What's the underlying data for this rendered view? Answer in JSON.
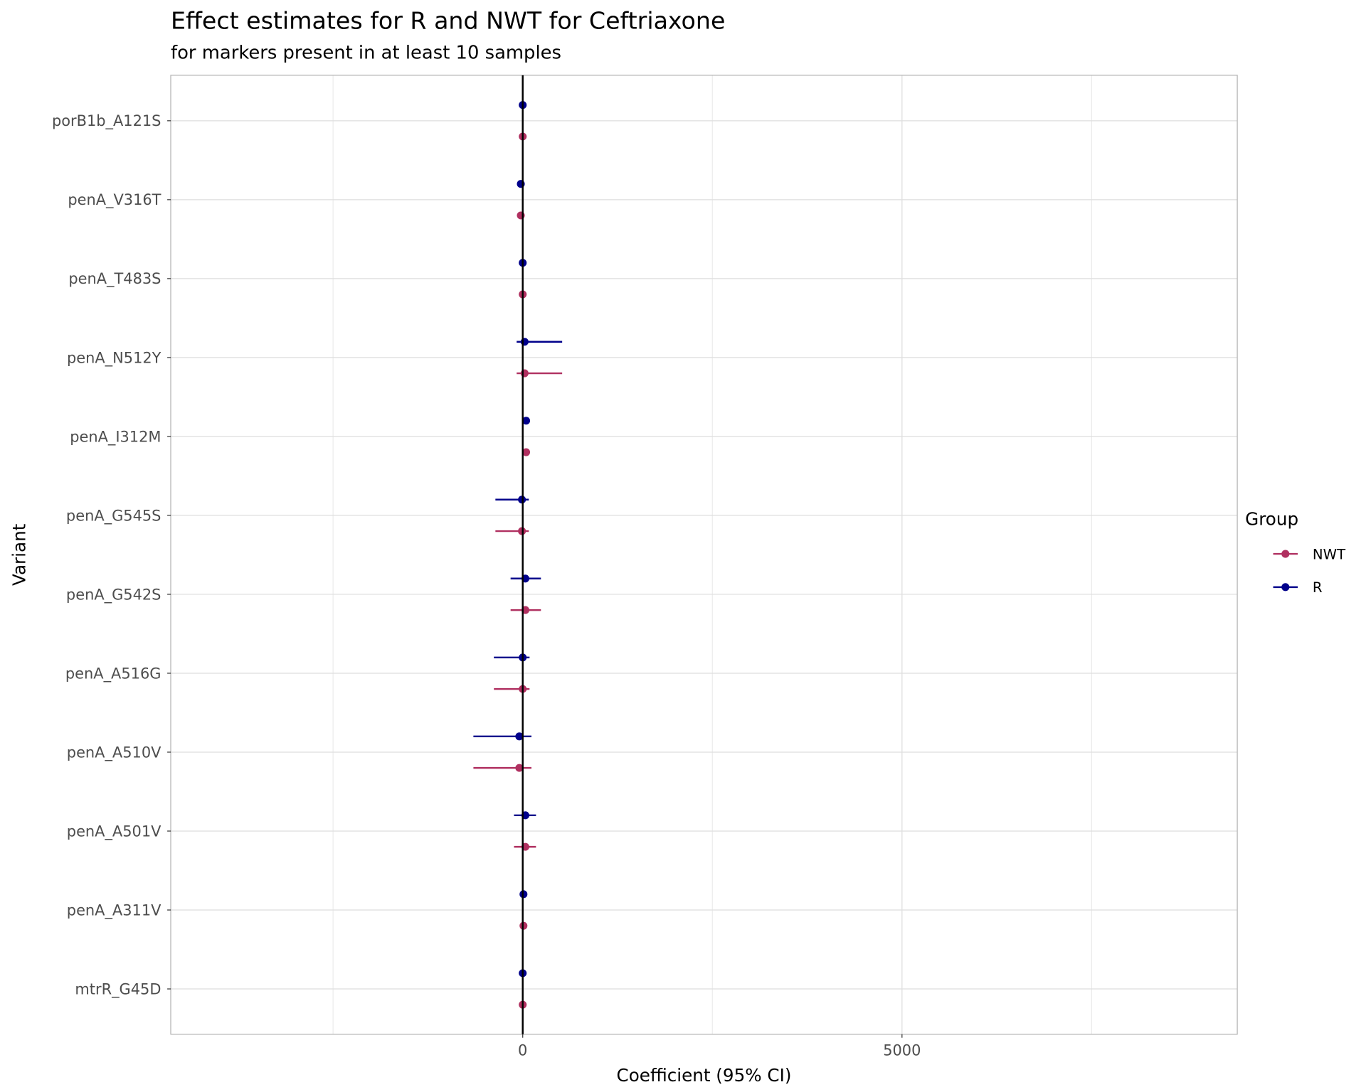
{
  "chart_data": {
    "type": "scatter",
    "subtype": "forest-plot (point + horizontal 95% CI)",
    "title": "Effect estimates for R and NWT for Ceftriaxone",
    "subtitle": "for markers present in at least 10 samples",
    "xlabel": "Coefficient (95% CI)",
    "ylabel": "Variant",
    "xlim": [
      -4640,
      9420
    ],
    "x_major_ticks": [
      0,
      5000
    ],
    "x_tick_labels": [
      "0",
      "5000"
    ],
    "x_minor_grid": [
      -2500,
      2500,
      7500
    ],
    "reference_line": 0,
    "grid": true,
    "legend": {
      "title": "Group",
      "position": "right",
      "entries": [
        "NWT",
        "R"
      ]
    },
    "colors": {
      "NWT": "#b03060",
      "R": "#00008b"
    },
    "categories": [
      "porB1b_A121S",
      "penA_V316T",
      "penA_T483S",
      "penA_N512Y",
      "penA_I312M",
      "penA_G545S",
      "penA_G542S",
      "penA_A516G",
      "penA_A510V",
      "penA_A501V",
      "penA_A311V",
      "mtrR_G45D"
    ],
    "series": [
      {
        "name": "R",
        "estimate": [
          0,
          -25,
          0,
          25,
          45,
          -10,
          35,
          0,
          -45,
          35,
          10,
          0
        ],
        "lower": [
          0,
          -25,
          0,
          -80,
          45,
          -360,
          -160,
          -380,
          -650,
          -115,
          10,
          0
        ],
        "upper": [
          0,
          -25,
          0,
          520,
          45,
          80,
          240,
          90,
          115,
          175,
          10,
          0
        ]
      },
      {
        "name": "NWT",
        "estimate": [
          0,
          -25,
          0,
          25,
          45,
          -10,
          35,
          0,
          -45,
          35,
          10,
          0
        ],
        "lower": [
          0,
          -25,
          0,
          -80,
          45,
          -360,
          -160,
          -380,
          -650,
          -115,
          10,
          0
        ],
        "upper": [
          0,
          -25,
          0,
          520,
          45,
          80,
          240,
          90,
          115,
          175,
          10,
          0
        ]
      }
    ]
  }
}
